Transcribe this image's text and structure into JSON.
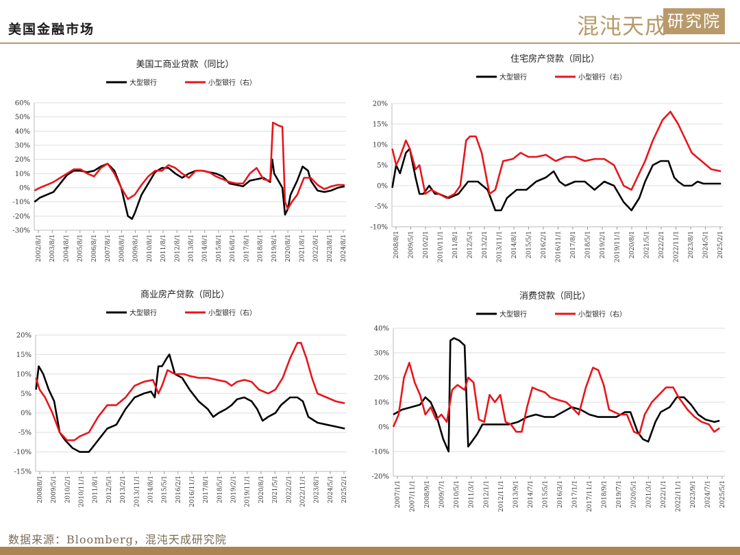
{
  "header": {
    "title": "美国金融市场",
    "brand_text": "混沌天成",
    "brand_seal": "研究院"
  },
  "footer": {
    "source": "数据来源：Bloomberg，混沌天成研究院"
  },
  "colors": {
    "large": "#000000",
    "small": "#e8141a",
    "gold": "#b89a6a",
    "grid": "#dddddd"
  },
  "chart_data": [
    {
      "type": "line",
      "title": "美国工商业贷款（同比）",
      "xlabel": "",
      "ylabel": "",
      "ylim": [
        -30,
        60
      ],
      "yticks": [
        -30,
        -20,
        -10,
        0,
        10,
        20,
        30,
        40,
        50,
        60
      ],
      "tick_suffix": "%",
      "x_range": [
        2002.583,
        2025.6
      ],
      "x_tick_labels": [
        "2002/8/1",
        "2003/8/1",
        "2004/8/1",
        "2005/8/1",
        "2006/8/1",
        "2007/8/1",
        "2008/8/1",
        "2009/8/1",
        "2010/8/1",
        "2011/8/1",
        "2012/8/1",
        "2013/8/1",
        "2014/8/1",
        "2015/8/1",
        "2016/8/1",
        "2017/8/1",
        "2018/8/1",
        "2019/8/1",
        "2020/8/1",
        "2021/8/1",
        "2022/8/1",
        "2023/8/1",
        "2024/8/1"
      ],
      "grid": "horizontal",
      "legend": "top",
      "series": [
        {
          "name": "大型银行",
          "color": "#000000",
          "x": [
            2002.6,
            2003.0,
            2003.5,
            2004.0,
            2004.5,
            2005.0,
            2005.5,
            2006.0,
            2006.5,
            2007.0,
            2007.5,
            2008.0,
            2008.5,
            2009.0,
            2009.5,
            2009.8,
            2010.0,
            2010.5,
            2011.0,
            2011.5,
            2012.0,
            2012.5,
            2013.0,
            2013.5,
            2014.0,
            2014.5,
            2015.0,
            2015.5,
            2016.0,
            2016.5,
            2017.0,
            2017.5,
            2018.0,
            2018.5,
            2019.0,
            2019.5,
            2020.0,
            2020.15,
            2020.3,
            2020.6,
            2020.9,
            2021.1,
            2021.3,
            2021.5,
            2022.0,
            2022.4,
            2022.8,
            2023.0,
            2023.5,
            2024.0,
            2024.5,
            2025.0,
            2025.5
          ],
          "y": [
            -10,
            -7,
            -5,
            -3,
            3,
            9,
            12,
            12,
            11,
            12,
            15,
            17,
            12,
            0,
            -20,
            -22,
            -18,
            -5,
            3,
            11,
            14,
            14,
            10,
            7,
            10,
            12,
            12,
            11,
            10,
            8,
            3,
            2,
            1,
            5,
            6,
            7,
            4,
            20,
            10,
            5,
            0,
            -19,
            -15,
            -5,
            5,
            15,
            12,
            5,
            -2,
            -3,
            -2,
            0,
            1
          ]
        },
        {
          "name": "小型银行（右）",
          "color": "#e8141a",
          "x": [
            2002.6,
            2003.0,
            2003.5,
            2004.0,
            2004.5,
            2005.0,
            2005.5,
            2006.0,
            2006.5,
            2007.0,
            2007.5,
            2008.0,
            2008.5,
            2009.0,
            2009.5,
            2010.0,
            2010.5,
            2011.0,
            2011.5,
            2012.0,
            2012.5,
            2013.0,
            2013.5,
            2014.0,
            2014.5,
            2015.0,
            2015.5,
            2016.0,
            2016.5,
            2017.0,
            2017.5,
            2018.0,
            2018.5,
            2019.0,
            2019.5,
            2020.0,
            2020.2,
            2020.6,
            2020.9,
            2021.1,
            2021.3,
            2021.6,
            2022.0,
            2022.5,
            2023.0,
            2023.5,
            2024.0,
            2024.5,
            2025.0,
            2025.5
          ],
          "y": [
            -2,
            0,
            2,
            4,
            7,
            10,
            13,
            13,
            10,
            8,
            14,
            17,
            10,
            0,
            -8,
            -5,
            2,
            8,
            12,
            12,
            16,
            14,
            10,
            7,
            12,
            12,
            11,
            8,
            6,
            4,
            3,
            3,
            10,
            14,
            6,
            5,
            46,
            44,
            43,
            -10,
            -15,
            -10,
            -5,
            7,
            7,
            2,
            -1,
            1,
            2,
            2
          ]
        }
      ]
    },
    {
      "type": "line",
      "title": "住宅房产贷款（同比）",
      "xlabel": "",
      "ylabel": "",
      "ylim": [
        -10,
        20
      ],
      "yticks": [
        -10,
        -5,
        0,
        5,
        10,
        15,
        20
      ],
      "tick_suffix": "%",
      "x_range": [
        2008.583,
        2025.6
      ],
      "x_tick_labels": [
        "2008/8/1",
        "2009/5/1",
        "2010/2/1",
        "2010/11/1",
        "2011/8/1",
        "2012/5/1",
        "2013/2/1",
        "2013/11/1",
        "2014/8/1",
        "2015/5/1",
        "2016/2/1",
        "2016/11/1",
        "2017/8/1",
        "2018/5/1",
        "2019/2/1",
        "2019/11/1",
        "2020/8/1",
        "2021/5/1",
        "2022/2/1",
        "2022/11/1",
        "2023/8/1",
        "2024/5/1",
        "2025/2/1"
      ],
      "grid": "horizontal",
      "legend": "top",
      "series": [
        {
          "name": "大型银行",
          "color": "#000000",
          "x": [
            2008.6,
            2008.8,
            2009.0,
            2009.3,
            2009.5,
            2009.8,
            2010.0,
            2010.2,
            2010.5,
            2010.8,
            2011.0,
            2011.5,
            2012.0,
            2012.5,
            2013.0,
            2013.5,
            2013.9,
            2014.2,
            2014.5,
            2015.0,
            2015.5,
            2016.0,
            2016.5,
            2016.9,
            2017.2,
            2017.5,
            2018.0,
            2018.5,
            2019.0,
            2019.5,
            2020.0,
            2020.5,
            2020.9,
            2021.3,
            2021.6,
            2022.0,
            2022.4,
            2022.8,
            2023.1,
            2023.3,
            2023.6,
            2024.0,
            2024.3,
            2024.6,
            2025.0,
            2025.5
          ],
          "y": [
            -0.5,
            5,
            3,
            8,
            9,
            2,
            -2,
            -2,
            0,
            -2,
            -2,
            -3,
            -2,
            1,
            1,
            -1,
            -6,
            -6,
            -3,
            -1,
            -1,
            1,
            2,
            3.5,
            1,
            0,
            1,
            1,
            -1,
            1,
            0,
            -4,
            -6,
            -3,
            1,
            5,
            6,
            6,
            2,
            1,
            0,
            0,
            1,
            0.5,
            0.5,
            0.5
          ]
        },
        {
          "name": "小型银行（右）",
          "color": "#e8141a",
          "x": [
            2008.6,
            2008.8,
            2009.0,
            2009.3,
            2009.5,
            2009.8,
            2010.0,
            2010.3,
            2010.6,
            2011.0,
            2011.4,
            2011.8,
            2012.1,
            2012.4,
            2012.6,
            2012.9,
            2013.2,
            2013.6,
            2013.9,
            2014.3,
            2014.8,
            2015.2,
            2015.6,
            2016.0,
            2016.5,
            2017.0,
            2017.5,
            2018.0,
            2018.5,
            2019.0,
            2019.5,
            2020.0,
            2020.5,
            2020.9,
            2021.2,
            2021.6,
            2022.0,
            2022.5,
            2022.9,
            2023.3,
            2023.7,
            2024.0,
            2024.5,
            2025.0,
            2025.5
          ],
          "y": [
            9,
            5,
            7,
            11,
            9,
            4,
            5,
            -2,
            -1,
            -2,
            -3,
            -2,
            0,
            11,
            12,
            12,
            8,
            -2,
            -1,
            6,
            6.5,
            8,
            7,
            7,
            7.5,
            6,
            7,
            7,
            6,
            6.5,
            6.5,
            5,
            0,
            -1,
            2,
            6,
            11,
            16,
            18,
            15,
            11,
            8,
            6,
            4,
            3.5
          ]
        }
      ]
    },
    {
      "type": "line",
      "title": "商业房产贷款（同比）",
      "xlabel": "",
      "ylabel": "",
      "ylim": [
        -15,
        20
      ],
      "yticks": [
        -15,
        -10,
        -5,
        0,
        5,
        10,
        15,
        20
      ],
      "tick_suffix": "%",
      "x_range": [
        2008.583,
        2025.6
      ],
      "x_tick_labels": [
        "2008/8/1",
        "2009/5/1",
        "2010/2/1",
        "2010/11/1",
        "2011/8/1",
        "2012/5/1",
        "2013/2/1",
        "2013/11/1",
        "2014/8/1",
        "2015/5/1",
        "2016/2/1",
        "2016/11/1",
        "2017/8/1",
        "2018/5/1",
        "2019/2/1",
        "2019/11/1",
        "2020/8/1",
        "2021/5/1",
        "2022/2/1",
        "2022/11/1",
        "2023/8/1",
        "2024/5/1",
        "2025/2/1"
      ],
      "grid": "horizontal",
      "legend": "top",
      "series": [
        {
          "name": "大型银行",
          "color": "#000000",
          "x": [
            2008.6,
            2008.75,
            2009.0,
            2009.3,
            2009.6,
            2009.9,
            2010.2,
            2010.6,
            2011.0,
            2011.5,
            2012.0,
            2012.5,
            2013.0,
            2013.5,
            2014.0,
            2014.5,
            2014.9,
            2015.1,
            2015.3,
            2015.5,
            2015.75,
            2015.9,
            2016.2,
            2016.6,
            2017.0,
            2017.5,
            2018.0,
            2018.3,
            2018.6,
            2019.0,
            2019.3,
            2019.6,
            2020.0,
            2020.4,
            2020.7,
            2021.0,
            2021.3,
            2021.7,
            2022.0,
            2022.5,
            2022.9,
            2023.2,
            2023.5,
            2024.0,
            2024.5,
            2025.0,
            2025.5
          ],
          "y": [
            6,
            12,
            10,
            6,
            3,
            -5,
            -7,
            -9,
            -10,
            -10,
            -7,
            -4,
            -3,
            1,
            4,
            5,
            5.5,
            4,
            12,
            12,
            14,
            15,
            10,
            9,
            6,
            3,
            1,
            -1,
            0,
            1,
            2,
            3.5,
            4,
            3,
            1,
            -2,
            -1,
            0,
            2,
            4,
            4,
            3,
            -1,
            -2.5,
            -3,
            -3.5,
            -4
          ]
        },
        {
          "name": "小型银行（右）",
          "color": "#e8141a",
          "x": [
            2008.6,
            2008.8,
            2009.1,
            2009.5,
            2009.9,
            2010.3,
            2010.7,
            2011.0,
            2011.5,
            2012.0,
            2012.5,
            2013.0,
            2013.5,
            2014.0,
            2014.5,
            2015.0,
            2015.3,
            2015.5,
            2015.8,
            2016.2,
            2016.7,
            2017.0,
            2017.5,
            2018.0,
            2018.5,
            2019.0,
            2019.3,
            2019.6,
            2020.0,
            2020.4,
            2020.8,
            2021.3,
            2021.7,
            2022.1,
            2022.5,
            2022.9,
            2023.1,
            2023.4,
            2023.7,
            2024.0,
            2024.5,
            2025.0,
            2025.5
          ],
          "y": [
            9,
            6,
            4,
            0,
            -5,
            -7,
            -7,
            -6,
            -5,
            -1,
            2,
            2,
            4,
            7,
            8,
            8.5,
            5,
            7,
            11,
            10,
            10,
            9.5,
            9,
            9,
            8.5,
            8,
            7,
            8,
            8.5,
            8,
            6,
            5,
            6,
            9,
            14,
            18,
            18,
            14,
            9,
            5,
            4,
            3,
            2.5
          ]
        }
      ]
    },
    {
      "type": "line",
      "title": "消费贷款（同比）",
      "xlabel": "",
      "ylabel": "",
      "ylim": [
        -20,
        40
      ],
      "yticks": [
        -20,
        -10,
        0,
        10,
        20,
        30,
        40
      ],
      "tick_suffix": "%",
      "x_range": [
        2007.0,
        2025.6
      ],
      "x_tick_labels": [
        "2007/1/1",
        "2007/11/1",
        "2008/9/1",
        "2009/7/1",
        "2010/5/1",
        "2011/3/1",
        "2012/1/1",
        "2012/11/1",
        "2013/9/1",
        "2014/7/1",
        "2015/5/1",
        "2016/3/1",
        "2017/1/1",
        "2017/11/1",
        "2018/9/1",
        "2019/7/1",
        "2020/5/1",
        "2021/3/1",
        "2022/1/1",
        "2022/11/1",
        "2023/9/1",
        "2024/7/1",
        "2025/5/1"
      ],
      "grid": "horizontal",
      "legend": "top",
      "series": [
        {
          "name": "大型银行",
          "color": "#000000",
          "x": [
            2007.0,
            2007.5,
            2008.0,
            2008.5,
            2008.8,
            2009.1,
            2009.4,
            2009.8,
            2010.1,
            2010.2,
            2010.4,
            2010.7,
            2011.0,
            2011.2,
            2011.4,
            2011.7,
            2012.0,
            2012.5,
            2013.0,
            2013.5,
            2014.0,
            2014.5,
            2015.0,
            2015.5,
            2016.0,
            2016.5,
            2017.0,
            2017.5,
            2018.0,
            2018.5,
            2019.0,
            2019.5,
            2020.0,
            2020.3,
            2020.7,
            2021.0,
            2021.3,
            2021.7,
            2022.0,
            2022.5,
            2022.9,
            2023.3,
            2023.7,
            2024.1,
            2024.5,
            2025.0,
            2025.3
          ],
          "y": [
            5,
            7,
            8,
            9,
            12,
            10,
            5,
            -5,
            -10,
            35,
            36,
            35,
            33,
            -8,
            -6,
            -3,
            1,
            1,
            1,
            1,
            2,
            4,
            5,
            4,
            4,
            6,
            8,
            7,
            5,
            4,
            4,
            4,
            6,
            6,
            -2,
            -5,
            -6,
            2,
            6,
            8,
            12,
            12,
            9,
            5,
            3,
            2,
            2.5
          ]
        },
        {
          "name": "小型银行（右）",
          "color": "#e8141a",
          "x": [
            2007.0,
            2007.3,
            2007.6,
            2007.9,
            2008.2,
            2008.5,
            2008.8,
            2009.1,
            2009.4,
            2009.7,
            2010.0,
            2010.3,
            2010.6,
            2011.0,
            2011.2,
            2011.5,
            2011.8,
            2012.1,
            2012.4,
            2012.7,
            2013.0,
            2013.3,
            2013.6,
            2013.9,
            2014.2,
            2014.5,
            2014.8,
            2015.1,
            2015.5,
            2015.8,
            2016.2,
            2016.7,
            2017.0,
            2017.4,
            2017.8,
            2018.2,
            2018.5,
            2018.8,
            2019.1,
            2019.4,
            2019.7,
            2020.1,
            2020.5,
            2020.8,
            2021.1,
            2021.5,
            2021.9,
            2022.3,
            2022.7,
            2023.0,
            2023.5,
            2023.9,
            2024.3,
            2024.7,
            2025.0,
            2025.3
          ],
          "y": [
            0,
            5,
            20,
            26,
            18,
            13,
            5,
            8,
            3,
            5,
            2,
            15,
            17,
            15,
            20,
            18,
            3,
            2,
            13,
            10,
            13,
            2,
            1,
            -2,
            -2,
            8,
            16,
            15,
            14,
            12,
            11,
            10,
            8,
            5,
            16,
            24,
            23,
            17,
            7,
            6,
            5,
            5,
            -2,
            -3,
            5,
            10,
            13,
            16,
            16,
            12,
            7,
            4,
            2,
            1,
            -2,
            -0.5
          ]
        }
      ]
    }
  ]
}
